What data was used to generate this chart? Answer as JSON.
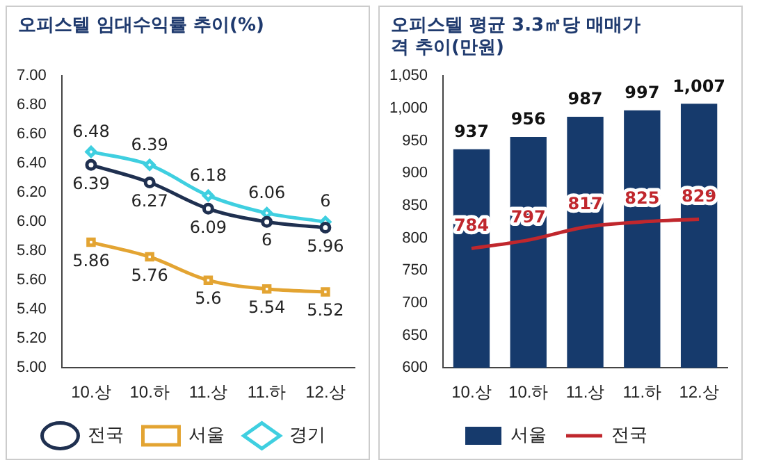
{
  "chart_data": [
    {
      "type": "line",
      "title": "오피스텔 임대수익률 추이(%)",
      "categories": [
        "10.상",
        "10.하",
        "11.상",
        "11.하",
        "12.상"
      ],
      "series": [
        {
          "name": "전국",
          "color": "#1f3050",
          "marker": "circle",
          "values": [
            6.39,
            6.27,
            6.09,
            6.0,
            5.96
          ]
        },
        {
          "name": "서울",
          "color": "#e3a432",
          "marker": "square",
          "values": [
            5.86,
            5.76,
            5.6,
            5.54,
            5.52
          ]
        },
        {
          "name": "경기",
          "color": "#3fcfe0",
          "marker": "diamond",
          "values": [
            6.48,
            6.39,
            6.18,
            6.06,
            6.0
          ]
        }
      ],
      "ylim": [
        5,
        7
      ],
      "yticks": [
        {
          "value": 5,
          "label": "5.00"
        },
        {
          "value": 5.2,
          "label": "5.20"
        },
        {
          "value": 5.4,
          "label": "5.40"
        },
        {
          "value": 5.6,
          "label": "5.60"
        },
        {
          "value": 5.8,
          "label": "5.80"
        },
        {
          "value": 6,
          "label": "6.00"
        },
        {
          "value": 6.2,
          "label": "6.20"
        },
        {
          "value": 6.4,
          "label": "6.40"
        },
        {
          "value": 6.6,
          "label": "6.60"
        },
        {
          "value": 6.8,
          "label": "6.80"
        },
        {
          "value": 7,
          "label": "7.00"
        }
      ],
      "grid": false,
      "legend": "bottom",
      "data_labels": true
    },
    {
      "type": "bar",
      "title": "오피스텔 평균 3.3㎡당 매매가격 추이(만원)",
      "categories": [
        "10.상",
        "10.하",
        "11.상",
        "11.하",
        "12.상"
      ],
      "series": [
        {
          "name": "서울",
          "color": "#163a6c",
          "values": [
            937,
            956,
            987,
            997,
            1007
          ],
          "value_labels": [
            "937",
            "956",
            "987",
            "997",
            "1,007"
          ]
        },
        {
          "name": "전국",
          "type": "line",
          "color": "#c0272d",
          "marker": "none",
          "values": [
            784,
            797,
            817,
            825,
            829
          ],
          "value_labels": [
            "784",
            "797",
            "817",
            "825",
            "829"
          ]
        }
      ],
      "ylim": [
        600,
        1050
      ],
      "yticks": [
        600,
        650,
        700,
        750,
        800,
        850,
        900,
        950,
        {
          "value": 1000,
          "label": "1,000"
        },
        {
          "value": 1050,
          "label": "1,050"
        }
      ],
      "grid": false,
      "legend": "bottom"
    }
  ]
}
